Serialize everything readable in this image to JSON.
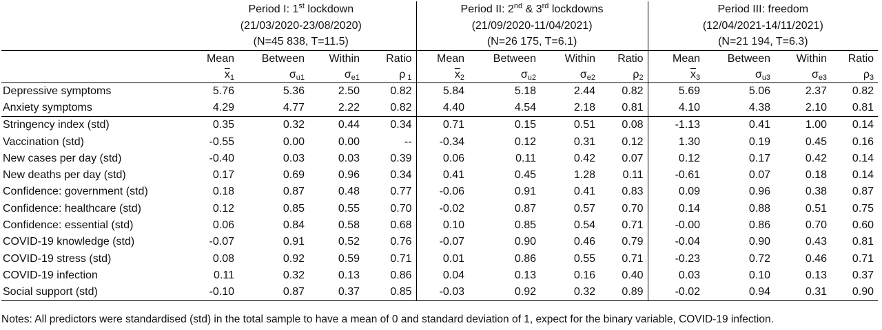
{
  "periods": [
    {
      "title_pre": "Period I: 1",
      "title_sup": "st",
      "title_post": " lockdown",
      "dates": "(21/03/2020-23/08/2020)",
      "n": "(N=45 838, T=11.5)",
      "idx": "1"
    },
    {
      "title_pre": "Period II: 2",
      "title_sup": "nd",
      "title_mid": " & 3",
      "title_sup2": "rd",
      "title_post": " lockdowns",
      "dates": "(21/09/2020-11/04/2021)",
      "n": "(N=26 175, T=6.1)",
      "idx": "2"
    },
    {
      "title_pre": "Period III: freedom",
      "title_sup": "",
      "title_post": "",
      "dates": "(12/04/2021-14/11/2021)",
      "n": "(N=21 194, T=6.3)",
      "idx": "3"
    }
  ],
  "columns": [
    "Mean",
    "Between",
    "Within",
    "Ratio"
  ],
  "symbols": {
    "mean": "x",
    "between": "σ",
    "within": "σ",
    "ratio": "ρ",
    "p1": {
      "mean_sub": "1",
      "between_sub": "u1",
      "within_sub": "e1",
      "ratio_sub": " 1"
    },
    "p2": {
      "mean_sub": "2",
      "between_sub": "u2",
      "within_sub": "e2",
      "ratio_sub": "2"
    },
    "p3": {
      "mean_sub": "3",
      "between_sub": "u3",
      "within_sub": "e3",
      "ratio_sub": "3"
    }
  },
  "outcomes": [
    {
      "label": "Depressive symptoms",
      "v": [
        "5.76",
        "5.36",
        "2.50",
        "0.82",
        "5.84",
        "5.18",
        "2.44",
        "0.82",
        "5.69",
        "5.06",
        "2.37",
        "0.82"
      ]
    },
    {
      "label": "Anxiety symptoms",
      "v": [
        "4.29",
        "4.77",
        "2.22",
        "0.82",
        "4.40",
        "4.54",
        "2.18",
        "0.81",
        "4.10",
        "4.38",
        "2.10",
        "0.81"
      ]
    }
  ],
  "predictors": [
    {
      "label": "Stringency index (std)",
      "v": [
        "0.35",
        "0.32",
        "0.44",
        "0.34",
        "0.71",
        "0.15",
        "0.51",
        "0.08",
        "-1.13",
        "0.41",
        "1.00",
        "0.14"
      ]
    },
    {
      "label": "Vaccination (std)",
      "v": [
        "-0.55",
        "0.00",
        "0.00",
        "--",
        "-0.34",
        "0.12",
        "0.31",
        "0.12",
        "1.30",
        "0.19",
        "0.45",
        "0.16"
      ]
    },
    {
      "label": "New cases per day (std)",
      "v": [
        "-0.40",
        "0.03",
        "0.03",
        "0.39",
        "0.06",
        "0.11",
        "0.42",
        "0.07",
        "0.12",
        "0.17",
        "0.42",
        "0.14"
      ]
    },
    {
      "label": "New deaths per day (std)",
      "v": [
        "0.17",
        "0.69",
        "0.96",
        "0.34",
        "0.41",
        "0.45",
        "1.28",
        "0.11",
        "-0.61",
        "0.07",
        "0.18",
        "0.14"
      ]
    },
    {
      "label": "Confidence: government (std)",
      "v": [
        "0.18",
        "0.87",
        "0.48",
        "0.77",
        "-0.06",
        "0.91",
        "0.41",
        "0.83",
        "0.09",
        "0.96",
        "0.38",
        "0.87"
      ]
    },
    {
      "label": "Confidence: healthcare (std)",
      "v": [
        "0.12",
        "0.85",
        "0.55",
        "0.70",
        "-0.02",
        "0.87",
        "0.57",
        "0.70",
        "0.14",
        "0.88",
        "0.51",
        "0.75"
      ]
    },
    {
      "label": "Confidence: essential (std)",
      "v": [
        "0.06",
        "0.84",
        "0.58",
        "0.68",
        "0.10",
        "0.85",
        "0.54",
        "0.71",
        "-0.00",
        "0.86",
        "0.70",
        "0.60"
      ]
    },
    {
      "label": "COVID-19 knowledge (std)",
      "v": [
        "-0.07",
        "0.91",
        "0.52",
        "0.76",
        "-0.07",
        "0.90",
        "0.46",
        "0.79",
        "-0.04",
        "0.90",
        "0.43",
        "0.81"
      ]
    },
    {
      "label": "COVID-19 stress (std)",
      "v": [
        "0.08",
        "0.92",
        "0.59",
        "0.71",
        "0.01",
        "0.86",
        "0.55",
        "0.71",
        "-0.23",
        "0.72",
        "0.46",
        "0.71"
      ]
    },
    {
      "label": "COVID-19 infection",
      "v": [
        "0.11",
        "0.32",
        "0.13",
        "0.86",
        "0.04",
        "0.13",
        "0.16",
        "0.40",
        "0.03",
        "0.10",
        "0.13",
        "0.37"
      ]
    },
    {
      "label": "Social support (std)",
      "v": [
        "-0.10",
        "0.87",
        "0.37",
        "0.85",
        "-0.03",
        "0.92",
        "0.32",
        "0.89",
        "-0.02",
        "0.94",
        "0.31",
        "0.90"
      ]
    }
  ],
  "note": "Notes: All predictors were standardised (std) in the total sample to have a mean of 0 and standard deviation of 1, expect for the binary variable, COVID-19 infection."
}
